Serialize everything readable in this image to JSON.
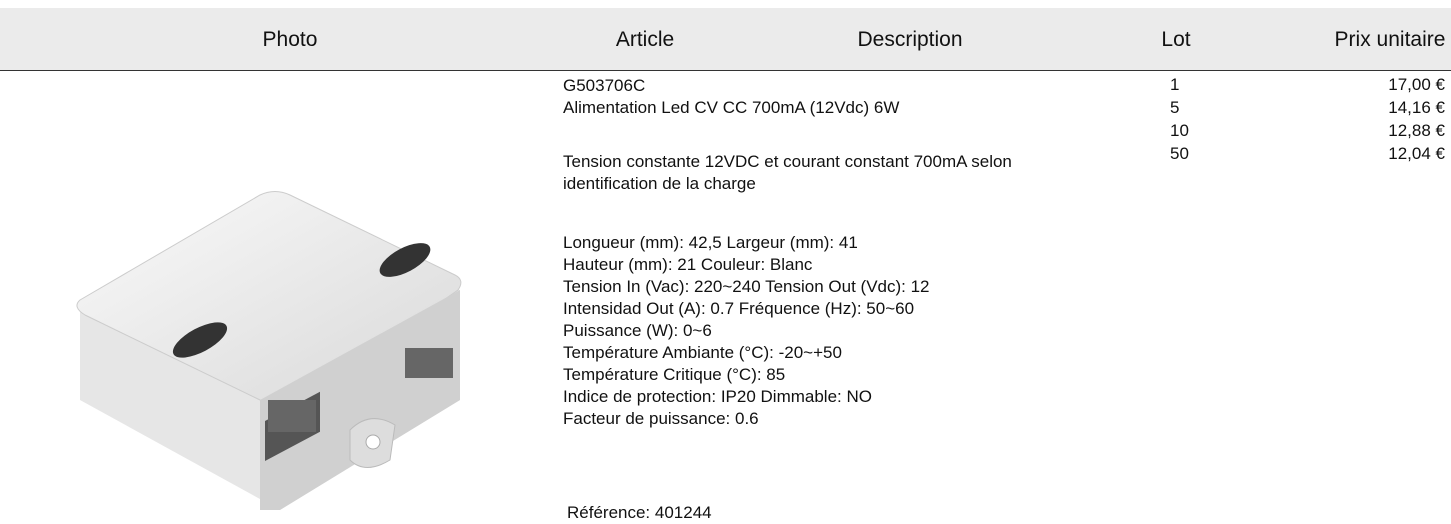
{
  "header": {
    "columns": [
      "Photo",
      "Article",
      "Description",
      "Lot",
      "Prix unitaire"
    ]
  },
  "product": {
    "article": "G503706C",
    "name": "Alimentation Led CV CC 700mA (12Vdc) 6W",
    "summary": "Tension constante 12VDC et courant constant 700mA selon identification de la charge",
    "specs": [
      "Longueur (mm): 42,5 Largeur (mm): 41",
      "Hauteur (mm): 21 Couleur: Blanc",
      "Tension In (Vac): 220~240 Tension Out (Vdc): 12",
      "Intensidad Out (A): 0.7 Fréquence (Hz): 50~60",
      "Puissance (W): 0~6",
      "Température Ambiante (°C): -20~+50",
      "Température Critique (°C): 85",
      "Indice de protection: IP20 Dimmable: NO",
      "Facteur de puissance: 0.6"
    ],
    "reference": "Référence: 401244"
  },
  "prices": [
    {
      "lot": 1,
      "price": "17,00 €"
    },
    {
      "lot": 5,
      "price": "14,16 €"
    },
    {
      "lot": 10,
      "price": "12,88 €"
    },
    {
      "lot": 50,
      "price": "12,04 €"
    }
  ]
}
